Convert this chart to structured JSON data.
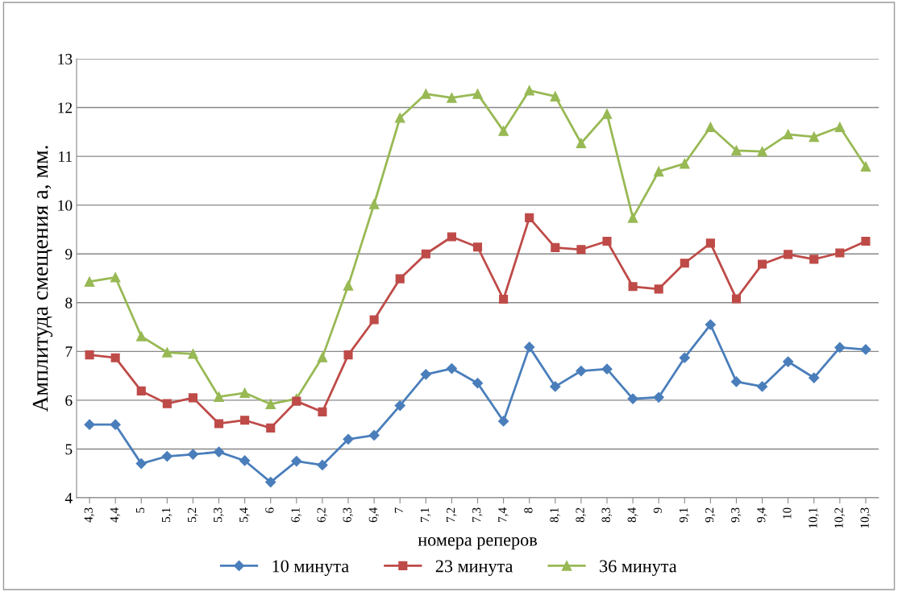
{
  "chart_data": {
    "type": "line",
    "xlabel": "номера реперов",
    "ylabel": "Амплитуда смещения а, мм.",
    "categories": [
      "4,3",
      "4,4",
      "5",
      "5,1",
      "5,2",
      "5,3",
      "5,4",
      "6",
      "6,1",
      "6,2",
      "6,3",
      "6,4",
      "7",
      "7,1",
      "7,2",
      "7,3",
      "7,4",
      "8",
      "8,1",
      "8,2",
      "8,3",
      "8,4",
      "9",
      "9,1",
      "9,2",
      "9,3",
      "9,4",
      "10",
      "10,1",
      "10,2",
      "10,3"
    ],
    "series": [
      {
        "name": "10 минута",
        "color": "#4a7ebb",
        "marker": "diamond",
        "values": [
          5.5,
          5.5,
          4.7,
          4.85,
          4.89,
          4.94,
          4.76,
          4.32,
          4.75,
          4.67,
          5.2,
          5.28,
          5.89,
          6.53,
          6.65,
          6.35,
          5.57,
          7.09,
          6.28,
          6.6,
          6.64,
          6.03,
          6.06,
          6.87,
          7.55,
          6.38,
          6.28,
          6.79,
          6.46,
          7.08,
          7.04
        ]
      },
      {
        "name": "23 минута",
        "color": "#be4b48",
        "marker": "square",
        "values": [
          6.93,
          6.87,
          6.19,
          5.93,
          6.05,
          5.52,
          5.59,
          5.43,
          5.98,
          5.76,
          6.93,
          7.65,
          8.49,
          9.0,
          9.35,
          9.14,
          8.07,
          9.74,
          9.13,
          9.09,
          9.26,
          8.33,
          8.28,
          8.81,
          9.22,
          8.08,
          8.79,
          8.99,
          8.89,
          9.02,
          9.26
        ]
      },
      {
        "name": "36 минута",
        "color": "#98b954",
        "marker": "triangle",
        "values": [
          8.43,
          8.52,
          7.31,
          6.98,
          6.95,
          6.07,
          6.15,
          5.92,
          6.03,
          6.88,
          8.35,
          10.02,
          11.79,
          12.28,
          12.2,
          12.28,
          11.52,
          12.35,
          12.23,
          11.27,
          11.87,
          9.74,
          10.69,
          10.85,
          11.6,
          11.12,
          11.1,
          11.45,
          11.4,
          11.6,
          10.79
        ]
      }
    ],
    "ylim": [
      4,
      13
    ],
    "yticks": [
      4,
      5,
      6,
      7,
      8,
      9,
      10,
      11,
      12,
      13
    ],
    "grid": "y",
    "legend": "bottom",
    "line_style": "solid"
  }
}
